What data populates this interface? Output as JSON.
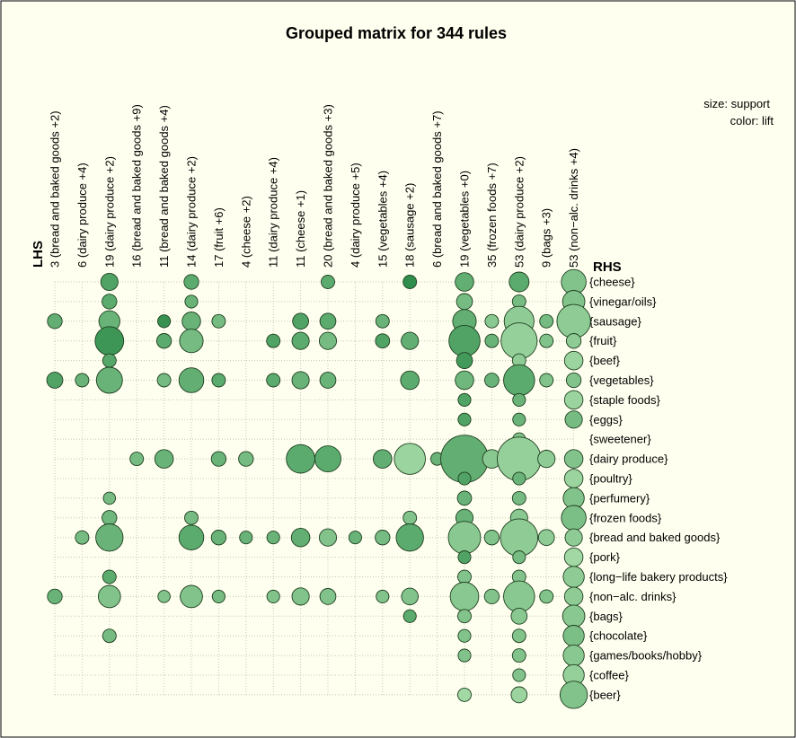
{
  "chart_data": {
    "type": "scatter",
    "title": "Grouped matrix for 344 rules",
    "xlabel": "LHS",
    "ylabel": "RHS",
    "legend": {
      "size_label": "size: support",
      "color_label": "color: lift",
      "placement": "top-right"
    },
    "x_categories": [
      "3 (bread and baked goods +2)",
      "6 (dairy produce +4)",
      "19 (dairy produce +2)",
      "16 (bread and baked goods +9)",
      "11 (bread and baked goods +4)",
      "14 (dairy produce +2)",
      "17 (fruit +6)",
      "4 (cheese +2)",
      "11 (dairy produce +4)",
      "11 (cheese +1)",
      "20 (bread and baked goods +3)",
      "4 (dairy produce +5)",
      "15 (vegetables +4)",
      "18 (sausage +2)",
      "6 (bread and baked goods +7)",
      "19 (vegetables +0)",
      "35 (frozen foods +7)",
      "53 (dairy produce +2)",
      "9 (bags +3)",
      "53 (non−alc. drinks +4)"
    ],
    "y_categories": [
      "{cheese}",
      "{vinegar/oils}",
      "{sausage}",
      "{fruit}",
      "{beef}",
      "{vegetables}",
      "{staple foods}",
      "{eggs}",
      "{sweetener}",
      "{dairy produce}",
      "{poultry}",
      "{perfumery}",
      "{frozen foods}",
      "{bread and baked goods}",
      "{pork}",
      "{long−life bakery products}",
      "{non−alc. drinks}",
      "{bags}",
      "{chocolate}",
      "{games/books/hobby}",
      "{coffee}",
      "{beer}"
    ],
    "points": [
      [
        0,
        2,
        0.3,
        0.55
      ],
      [
        0,
        5,
        0.35,
        0.7
      ],
      [
        0,
        16,
        0.3,
        0.5
      ],
      [
        1,
        5,
        0.25,
        0.5
      ],
      [
        1,
        13,
        0.25,
        0.4
      ],
      [
        2,
        0,
        0.4,
        0.7
      ],
      [
        2,
        1,
        0.3,
        0.6
      ],
      [
        2,
        2,
        0.55,
        0.5
      ],
      [
        2,
        3,
        0.85,
        0.85
      ],
      [
        2,
        4,
        0.25,
        0.65
      ],
      [
        2,
        5,
        0.75,
        0.5
      ],
      [
        2,
        11,
        0.2,
        0.4
      ],
      [
        2,
        12,
        0.3,
        0.45
      ],
      [
        2,
        13,
        0.8,
        0.5
      ],
      [
        2,
        15,
        0.25,
        0.6
      ],
      [
        2,
        16,
        0.6,
        0.3
      ],
      [
        2,
        18,
        0.25,
        0.4
      ],
      [
        3,
        9,
        0.25,
        0.4
      ],
      [
        4,
        2,
        0.22,
        0.9
      ],
      [
        4,
        3,
        0.3,
        0.6
      ],
      [
        4,
        5,
        0.25,
        0.4
      ],
      [
        4,
        9,
        0.45,
        0.5
      ],
      [
        4,
        16,
        0.2,
        0.3
      ],
      [
        5,
        0,
        0.3,
        0.6
      ],
      [
        5,
        1,
        0.22,
        0.5
      ],
      [
        5,
        2,
        0.45,
        0.5
      ],
      [
        5,
        3,
        0.65,
        0.4
      ],
      [
        5,
        5,
        0.7,
        0.55
      ],
      [
        5,
        12,
        0.25,
        0.4
      ],
      [
        5,
        13,
        0.7,
        0.6
      ],
      [
        5,
        16,
        0.6,
        0.3
      ],
      [
        6,
        2,
        0.25,
        0.4
      ],
      [
        6,
        5,
        0.25,
        0.6
      ],
      [
        6,
        9,
        0.3,
        0.5
      ],
      [
        6,
        13,
        0.3,
        0.5
      ],
      [
        6,
        16,
        0.22,
        0.4
      ],
      [
        7,
        9,
        0.3,
        0.4
      ],
      [
        7,
        13,
        0.22,
        0.5
      ],
      [
        8,
        3,
        0.25,
        0.7
      ],
      [
        8,
        5,
        0.25,
        0.6
      ],
      [
        8,
        13,
        0.22,
        0.5
      ],
      [
        8,
        16,
        0.22,
        0.3
      ],
      [
        9,
        2,
        0.35,
        0.7
      ],
      [
        9,
        3,
        0.4,
        0.6
      ],
      [
        9,
        5,
        0.4,
        0.5
      ],
      [
        9,
        9,
        0.85,
        0.6
      ],
      [
        9,
        13,
        0.45,
        0.55
      ],
      [
        9,
        16,
        0.4,
        0.3
      ],
      [
        10,
        0,
        0.25,
        0.6
      ],
      [
        10,
        2,
        0.35,
        0.6
      ],
      [
        10,
        3,
        0.4,
        0.4
      ],
      [
        10,
        5,
        0.35,
        0.5
      ],
      [
        10,
        9,
        0.75,
        0.6
      ],
      [
        10,
        13,
        0.4,
        0.3
      ],
      [
        10,
        16,
        0.35,
        0.3
      ],
      [
        11,
        13,
        0.22,
        0.5
      ],
      [
        12,
        2,
        0.25,
        0.5
      ],
      [
        12,
        3,
        0.28,
        0.7
      ],
      [
        12,
        9,
        0.45,
        0.55
      ],
      [
        12,
        13,
        0.3,
        0.4
      ],
      [
        12,
        16,
        0.22,
        0.3
      ],
      [
        13,
        0,
        0.25,
        0.95
      ],
      [
        13,
        3,
        0.4,
        0.55
      ],
      [
        13,
        5,
        0.45,
        0.6
      ],
      [
        13,
        9,
        0.95,
        0.1
      ],
      [
        13,
        12,
        0.25,
        0.3
      ],
      [
        13,
        13,
        0.8,
        0.6
      ],
      [
        13,
        16,
        0.38,
        0.3
      ],
      [
        13,
        17,
        0.22,
        0.6
      ],
      [
        14,
        9,
        0.22,
        0.5
      ],
      [
        15,
        0,
        0.45,
        0.55
      ],
      [
        15,
        1,
        0.35,
        0.4
      ],
      [
        15,
        2,
        0.65,
        0.55
      ],
      [
        15,
        3,
        0.95,
        0.7
      ],
      [
        15,
        4,
        0.35,
        0.8
      ],
      [
        15,
        5,
        0.45,
        0.45
      ],
      [
        15,
        6,
        0.22,
        0.7
      ],
      [
        15,
        7,
        0.22,
        0.7
      ],
      [
        15,
        9,
        1.6,
        0.55
      ],
      [
        15,
        10,
        0.22,
        0.7
      ],
      [
        15,
        11,
        0.28,
        0.5
      ],
      [
        15,
        12,
        0.4,
        0.5
      ],
      [
        15,
        13,
        1.0,
        0.25
      ],
      [
        15,
        14,
        0.22,
        0.7
      ],
      [
        15,
        15,
        0.25,
        0.3
      ],
      [
        15,
        16,
        0.85,
        0.25
      ],
      [
        15,
        17,
        0.25,
        0.3
      ],
      [
        15,
        18,
        0.22,
        0.3
      ],
      [
        15,
        19,
        0.22,
        0.3
      ],
      [
        15,
        21,
        0.25,
        0.05
      ],
      [
        16,
        2,
        0.25,
        0.25
      ],
      [
        16,
        3,
        0.25,
        0.5
      ],
      [
        16,
        5,
        0.28,
        0.5
      ],
      [
        16,
        9,
        0.45,
        0.25
      ],
      [
        16,
        13,
        0.3,
        0.3
      ],
      [
        16,
        16,
        0.3,
        0.3
      ],
      [
        17,
        0,
        0.5,
        0.6
      ],
      [
        17,
        1,
        0.25,
        0.4
      ],
      [
        17,
        2,
        0.9,
        0.2
      ],
      [
        17,
        3,
        1.15,
        0.15
      ],
      [
        17,
        4,
        0.25,
        0.2
      ],
      [
        17,
        5,
        0.95,
        0.6
      ],
      [
        17,
        6,
        0.22,
        0.5
      ],
      [
        17,
        7,
        0.22,
        0.5
      ],
      [
        17,
        8,
        0.22,
        0.3
      ],
      [
        17,
        9,
        1.45,
        0.15
      ],
      [
        17,
        10,
        0.22,
        0.5
      ],
      [
        17,
        11,
        0.25,
        0.4
      ],
      [
        17,
        12,
        0.4,
        0.25
      ],
      [
        17,
        13,
        1.2,
        0.2
      ],
      [
        17,
        14,
        0.22,
        0.4
      ],
      [
        17,
        15,
        0.25,
        0.3
      ],
      [
        17,
        16,
        0.95,
        0.25
      ],
      [
        17,
        17,
        0.35,
        0.25
      ],
      [
        17,
        18,
        0.25,
        0.3
      ],
      [
        17,
        19,
        0.25,
        0.3
      ],
      [
        17,
        20,
        0.22,
        0.3
      ],
      [
        17,
        21,
        0.35,
        0.1
      ],
      [
        18,
        2,
        0.25,
        0.4
      ],
      [
        18,
        3,
        0.25,
        0.3
      ],
      [
        18,
        5,
        0.25,
        0.3
      ],
      [
        18,
        9,
        0.4,
        0.2
      ],
      [
        18,
        13,
        0.35,
        0.2
      ],
      [
        18,
        16,
        0.25,
        0.3
      ],
      [
        19,
        0,
        0.7,
        0.3
      ],
      [
        19,
        1,
        0.6,
        0.3
      ],
      [
        19,
        2,
        1.05,
        0.2
      ],
      [
        19,
        3,
        0.3,
        0.2
      ],
      [
        19,
        4,
        0.45,
        0.1
      ],
      [
        19,
        5,
        0.3,
        0.3
      ],
      [
        19,
        6,
        0.45,
        0.1
      ],
      [
        19,
        7,
        0.4,
        0.4
      ],
      [
        19,
        9,
        0.45,
        0.3
      ],
      [
        19,
        10,
        0.45,
        0.1
      ],
      [
        19,
        11,
        0.55,
        0.3
      ],
      [
        19,
        12,
        0.7,
        0.35
      ],
      [
        19,
        13,
        0.4,
        0.2
      ],
      [
        19,
        14,
        0.45,
        0.05
      ],
      [
        19,
        15,
        0.55,
        0.2
      ],
      [
        19,
        16,
        0.45,
        0.2
      ],
      [
        19,
        17,
        0.6,
        0.25
      ],
      [
        19,
        18,
        0.55,
        0.35
      ],
      [
        19,
        19,
        0.55,
        0.25
      ],
      [
        19,
        20,
        0.55,
        0.15
      ],
      [
        19,
        21,
        0.8,
        0.3
      ]
    ]
  }
}
